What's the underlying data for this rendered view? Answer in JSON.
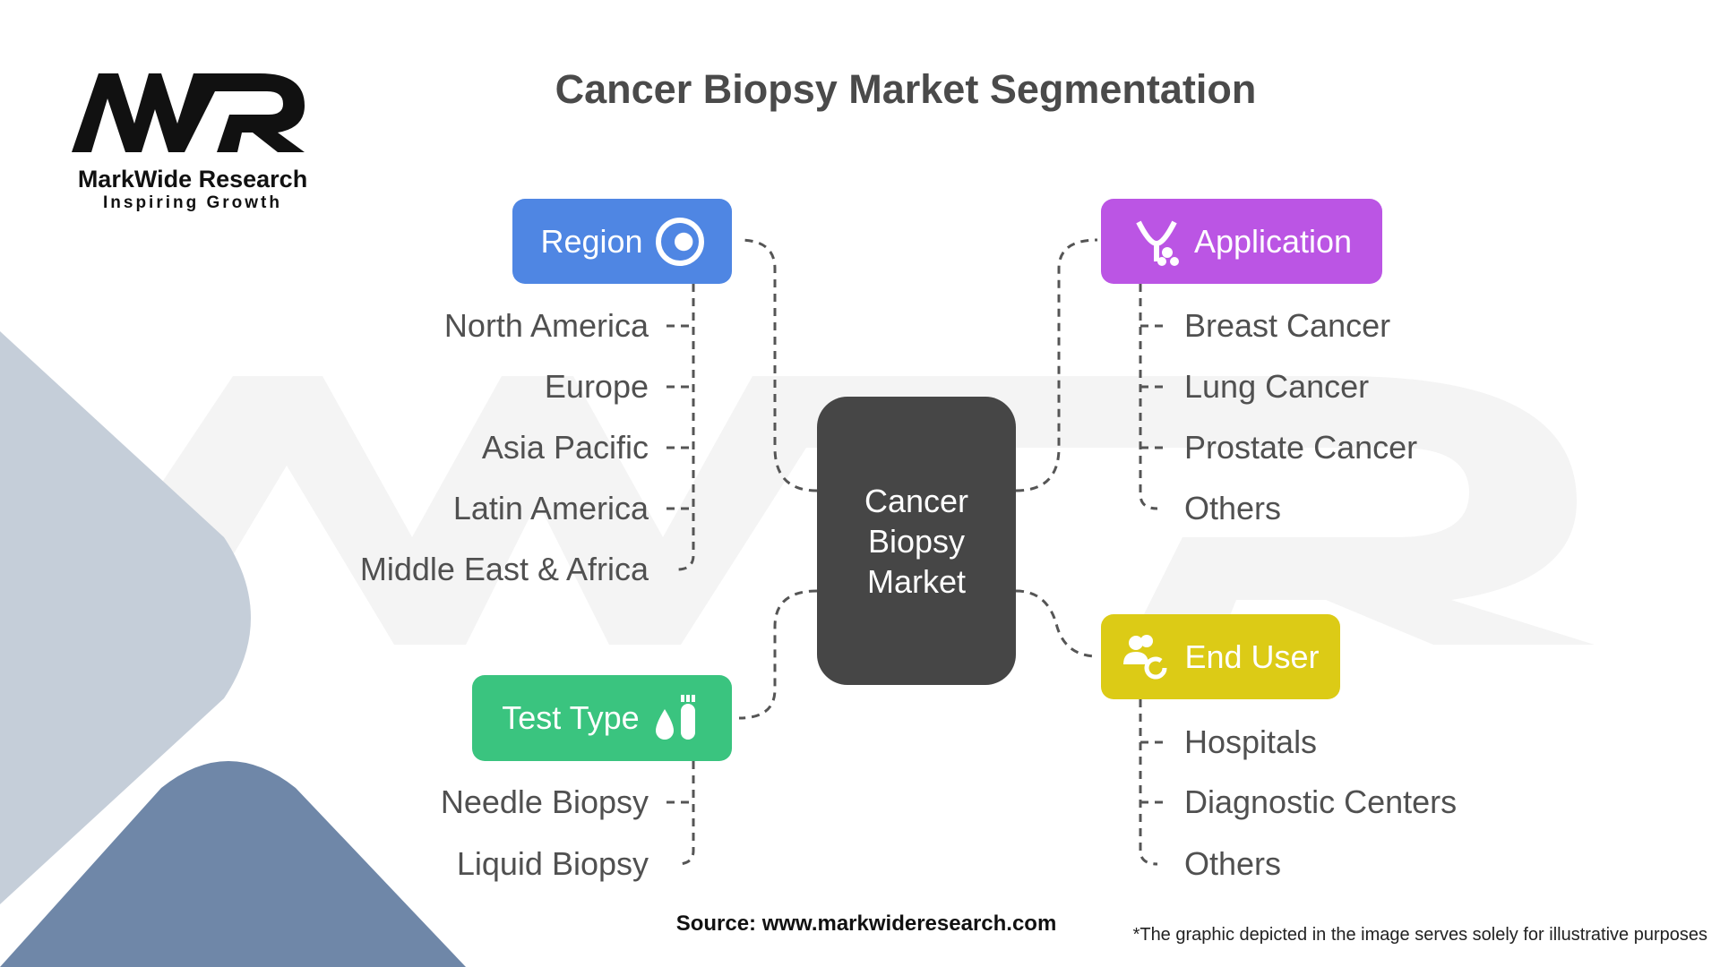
{
  "title": "Cancer Biopsy Market Segmentation",
  "logo": {
    "name": "MarkWide Research",
    "tagline": "Inspiring Growth",
    "mark": "MWR"
  },
  "center": {
    "label": "Cancer Biopsy Market"
  },
  "categories": [
    {
      "label": "Region",
      "icon": "globe-icon",
      "color": "#4f86e3",
      "items": [
        "North America",
        "Europe",
        "Asia Pacific",
        "Latin America",
        "Middle East & Africa"
      ]
    },
    {
      "label": "Application",
      "icon": "molecule-icon",
      "color": "#bb55e4",
      "items": [
        "Breast Cancer",
        "Lung Cancer",
        "Prostate Cancer",
        "Others"
      ]
    },
    {
      "label": "Test Type",
      "icon": "test-tube-icon",
      "color": "#3ac47f",
      "items": [
        "Needle Biopsy",
        "Liquid Biopsy"
      ]
    },
    {
      "label": "End User",
      "icon": "users-icon",
      "color": "#dccb16",
      "items": [
        "Hospitals",
        "Diagnostic Centers",
        "Others"
      ]
    }
  ],
  "source": "Source: www.markwideresearch.com",
  "disclaimer": "*The graphic depicted in the image serves solely for illustrative purposes"
}
